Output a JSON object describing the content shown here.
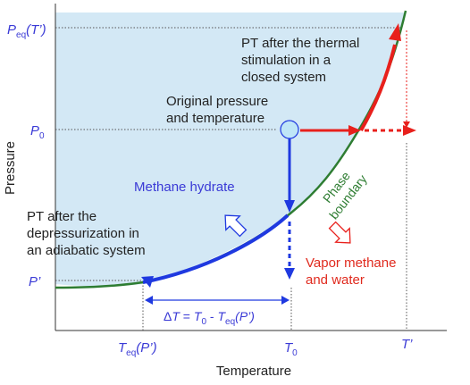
{
  "axes": {
    "ylabel": "Pressure",
    "xlabel": "Temperature"
  },
  "y_ticks": {
    "peq_tprime_main": "P",
    "peq_tprime_sub": "eq",
    "peq_tprime_arg": "(T’)",
    "p0_main": "P",
    "p0_sub": "0",
    "pprime": "P’"
  },
  "x_ticks": {
    "teq_main": "T",
    "teq_sub": "eq",
    "teq_arg": "(P’)",
    "t0_main": "T",
    "t0_sub": "0",
    "tprime": "T’"
  },
  "annotations": {
    "thermal_line1": "PT after the thermal",
    "thermal_line2": "stimulation in a",
    "thermal_line3": "closed system",
    "original_line1": "Original pressure",
    "original_line2": "and temperature",
    "depress_line1": "PT after the",
    "depress_line2": "depressurization in",
    "depress_line3": "an adiabatic system",
    "methane_hydrate": "Methane hydrate",
    "phase_line1": "Phase",
    "phase_line2": "boundary",
    "vapor_line1": "Vapor methane",
    "vapor_line2": "and water"
  },
  "delta": {
    "d": "Δ",
    "T": "T",
    "eq1": " = ",
    "T0": "T",
    "sub0": "0",
    "minus": " - ",
    "Teq": "T",
    "subeq": "eq",
    "arg": "(P’)"
  },
  "colors": {
    "hydrate_region": "#d3e8f5",
    "phase_boundary": "#2e7d32",
    "depressurization_path": "#1f39e0",
    "thermal_path": "#e8201c",
    "point_fill": "#bfe6f7",
    "label_blue": "#3a3ad6",
    "label_red": "#e02a1e"
  }
}
